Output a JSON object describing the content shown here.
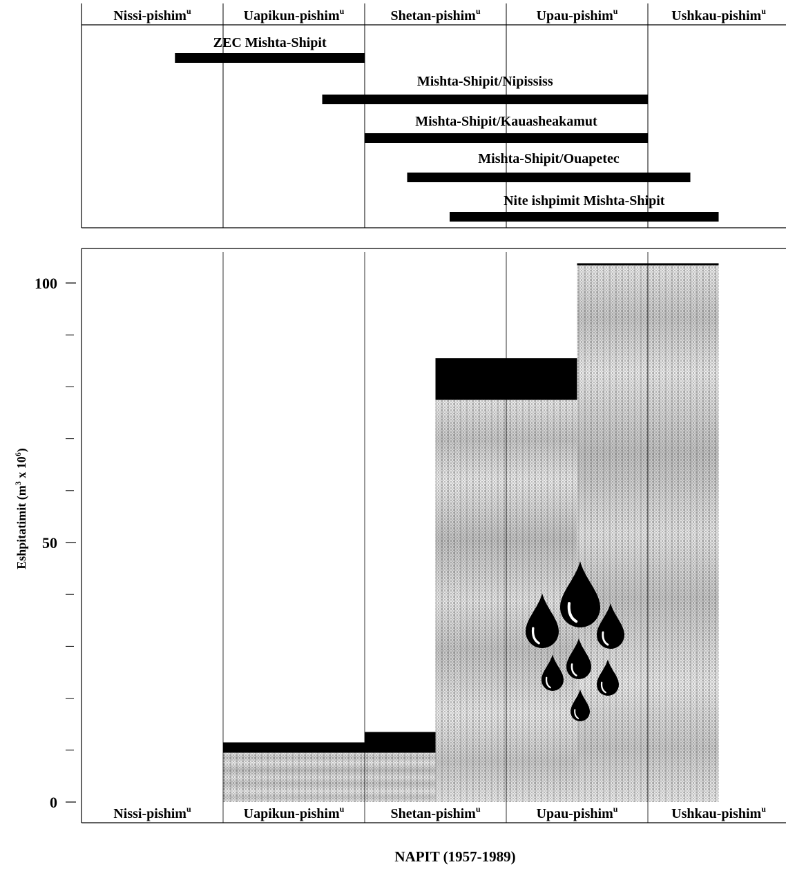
{
  "timeline": {
    "periods": [
      "Nissi-pishim",
      "Uapikun-pishim",
      "Shetan-pishim",
      "Upau-pishim",
      "Ushkau-pishim"
    ],
    "superscript": "u",
    "projects": [
      {
        "label": "ZEC Mishta-Shipit",
        "start": 0.66,
        "end": 2.0
      },
      {
        "label": "Mishta-Shipit/Nipississ",
        "start": 1.7,
        "end": 4.0
      },
      {
        "label": "Mishta-Shipit/Kauasheakamut",
        "start": 2.0,
        "end": 4.0
      },
      {
        "label": "Mishta-Shipit/Ouapetec",
        "start": 2.3,
        "end": 4.3
      },
      {
        "label": "Nite ishpimit Mishta-Shipit",
        "start": 2.6,
        "end": 4.5
      }
    ]
  },
  "chart_data": {
    "type": "bar",
    "categories": [
      "Nissi-pishim",
      "Uapikun-pishim",
      "Shetan-pishim",
      "Upau-pishim",
      "Ushkau-pishim"
    ],
    "xlabel": "NAPIT (1957-1989)",
    "ylabel": "Eshpitatimit (m3 x 10",
    "ylabel_sup_3": "3",
    "ylabel_sup_6": "6",
    "ylabel_end": ")",
    "ylim": [
      0,
      106
    ],
    "yticks": [
      0,
      50,
      100
    ],
    "minor_ticks": [
      10,
      20,
      30,
      40,
      60,
      70,
      80,
      90
    ],
    "steps": [
      {
        "x0": 0,
        "x1": 1,
        "value": 0,
        "black_top": 0
      },
      {
        "x0": 1,
        "x1": 2,
        "value": 9.5,
        "black_top": 11.5
      },
      {
        "x0": 2,
        "x1": 2.5,
        "value": 9.5,
        "black_top": 13.5
      },
      {
        "x0": 2.5,
        "x1": 3.5,
        "value": 77.5,
        "black_top": 85.5
      },
      {
        "x0": 3.5,
        "x1": 4.5,
        "value": 103.5,
        "black_top": 103.8
      }
    ],
    "grid": false,
    "legend": "none"
  }
}
